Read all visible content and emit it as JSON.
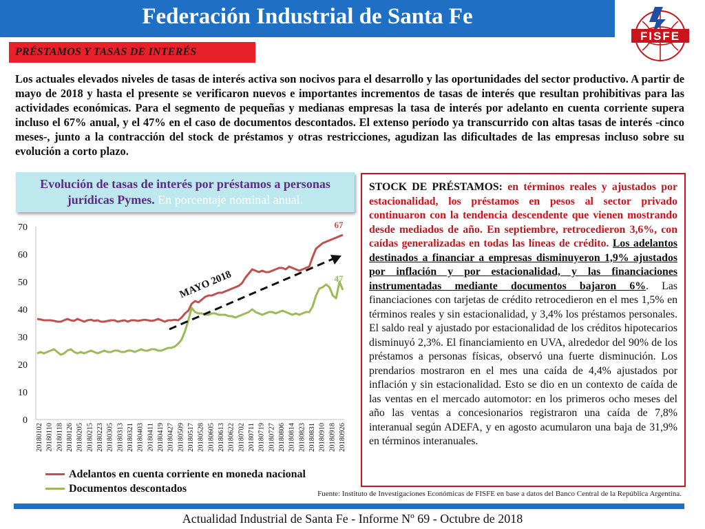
{
  "header": {
    "title": "Federación Industrial de Santa Fe",
    "logo_text": "FISFE"
  },
  "section_tag": "PRÉSTAMOS Y TASAS DE INTERÉS",
  "intro_text": "Los actuales elevados niveles de tasas de interés activa son nocivos para el desarrollo y las oportunidades del sector productivo. A partir de mayo de 2018 y hasta el presente se verificaron nuevos e importantes incrementos de tasas de interés que resultan prohibitivas para las actividades económicas. Para el segmento de pequeñas y medianas empresas la tasa de interés por adelanto en cuenta corriente supera incluso el 67% anual, y el 47% en el caso de documentos descontados. El extenso período ya transcurrido con altas tasas de interés -cinco meses-, junto a la contracción del stock de préstamos y otras restricciones, agudizan las dificultades de las empresas incluso sobre su evolución a corto plazo.",
  "chart_box": {
    "title_main": "Evolución de tasas de interés por préstamos a personas jurídicas Pymes.",
    "title_sub": " En porcentaje nominal anual."
  },
  "stock": {
    "lead": "STOCK DE PRÉSTAMOS: ",
    "red": "en términos reales y ajustados por estacionalidad, los préstamos en pesos al sector privado continuaron con la tendencia descendente que vienen mostrando desde mediados de año. En septiembre, retrocedieron 3,6%, con caídas generalizadas en todas las líneas de crédito.",
    "underlined": "Los adelantos destinados a financiar a empresas disminuyeron 1,9% ajustados por inflación y por estacionalidad, y las financiaciones instrumentadas mediante documentos bajaron 6%",
    "rest": ". Las financiaciones con tarjetas de crédito retrocedieron en el mes 1,5% en términos reales y sin estacionalidad, y 3,4% los préstamos personales. El saldo real y ajustado por estacionalidad de los créditos hipotecarios disminuyó 2,3%. El financiamiento en UVA, alrededor del 90% de los préstamos a personas físicas, observó una fuerte disminución. Los prendarios mostraron en el mes una caída de 4,4% ajustados por inflación y sin estacionalidad. Esto se dio en un contexto de caída de las ventas en el mercado automotor: en los primeros ocho meses del año las ventas a concesionarios registraron una caída de 7,8% interanual según ADEFA, y en agosto acumularon una baja de 31,9% en términos interanuales."
  },
  "source": "Fuente: Instituto de Investigaciones Económicas de FISFE en base a datos del Banco Central de la República Argentina.",
  "footer": "Actualidad Industrial de Santa Fe - Informe Nº 69 - Octubre de 2018",
  "colors": {
    "header_blue": "#1f6fc5",
    "tag_red": "#e8202a",
    "series_red": "#c0504d",
    "series_green": "#9bbb59"
  },
  "chart_data": {
    "type": "line",
    "ylim": [
      0,
      70
    ],
    "yticks": [
      0,
      10,
      20,
      30,
      40,
      50,
      60,
      70
    ],
    "x_tick_labels": [
      "20180102",
      "20180110",
      "20180118",
      "20180126",
      "20180205",
      "20180215",
      "20180223",
      "20180305",
      "20180313",
      "20180321",
      "20180403",
      "20180411",
      "20180419",
      "20180427",
      "20180509",
      "20180517",
      "20180528",
      "20180605",
      "20180613",
      "20180622",
      "20180702",
      "20180711",
      "20180719",
      "20180727",
      "20180806",
      "20180814",
      "20180823",
      "20180831",
      "20180910",
      "20180918",
      "20180926"
    ],
    "annotation": "MAYO 2018",
    "end_labels": [
      "67",
      "47"
    ],
    "series": [
      {
        "name": "Adelantos en cuenta corriente en moneda nacional",
        "color": "#c0504d",
        "values": [
          36.5,
          36.3,
          36.0,
          36.0,
          36.0,
          35.8,
          35.5,
          35.5,
          36.0,
          36.5,
          36.0,
          35.8,
          36.5,
          36.0,
          35.5,
          36.0,
          36.2,
          35.8,
          36.0,
          35.5,
          35.5,
          35.8,
          36.0,
          36.0,
          35.5,
          35.8,
          36.0,
          35.5,
          36.0,
          36.0,
          35.8,
          36.0,
          36.2,
          36.0,
          35.8,
          36.0,
          36.5,
          36.0,
          35.5,
          36.0,
          36.0,
          36.2,
          36.0,
          37.0,
          38.5,
          39.5,
          42.0,
          43.0,
          42.5,
          43.5,
          44.5,
          45.0,
          45.0,
          45.5,
          46.0,
          46.0,
          46.5,
          47.0,
          47.5,
          48.0,
          48.5,
          49.5,
          51.5,
          53.0,
          54.5,
          54.0,
          53.5,
          54.0,
          53.5,
          53.5,
          54.0,
          54.5,
          55.0,
          55.0,
          54.5,
          55.5,
          55.0,
          54.5,
          54.0,
          54.5,
          55.0,
          55.5,
          59.0,
          62.0,
          63.0,
          64.0,
          64.5,
          65.0,
          65.5,
          66.0,
          66.5,
          67.0
        ]
      },
      {
        "name": "Documentos descontados",
        "color": "#9bbb59",
        "values": [
          24.0,
          24.5,
          24.0,
          24.5,
          25.0,
          25.5,
          24.5,
          23.5,
          24.0,
          25.0,
          25.5,
          24.5,
          24.0,
          24.5,
          24.0,
          24.5,
          25.0,
          24.5,
          24.0,
          24.5,
          25.0,
          24.5,
          24.5,
          25.0,
          25.0,
          24.5,
          24.5,
          25.0,
          25.0,
          24.5,
          25.0,
          25.5,
          25.0,
          25.0,
          25.5,
          25.5,
          25.0,
          25.0,
          25.5,
          26.0,
          26.0,
          26.5,
          27.5,
          29.0,
          32.0,
          36.0,
          40.5,
          39.0,
          38.5,
          38.5,
          38.0,
          38.0,
          38.5,
          38.5,
          38.0,
          38.0,
          38.0,
          37.5,
          37.5,
          37.0,
          37.5,
          38.0,
          38.5,
          39.0,
          40.0,
          39.0,
          38.5,
          38.0,
          38.5,
          39.0,
          39.0,
          38.5,
          39.0,
          39.5,
          39.0,
          38.5,
          38.0,
          38.5,
          38.0,
          38.5,
          39.0,
          39.0,
          41.0,
          45.0,
          47.5,
          48.0,
          49.0,
          48.0,
          45.0,
          44.0,
          50.0,
          47.0
        ]
      }
    ]
  }
}
